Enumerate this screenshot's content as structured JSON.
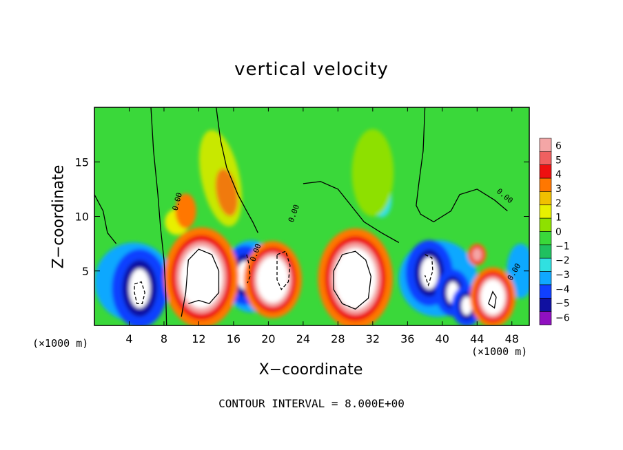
{
  "chart_data": {
    "type": "heatmap",
    "title": "vertical velocity",
    "xlabel": "X−coordinate",
    "ylabel": "Z−coordinate",
    "x_unit": "(×1000 m)",
    "y_unit": "(×1000 m)",
    "x_ticks": [
      4,
      8,
      12,
      16,
      20,
      24,
      28,
      32,
      36,
      40,
      44,
      48
    ],
    "y_ticks": [
      5,
      10,
      15
    ],
    "xlim": [
      0,
      50
    ],
    "ylim": [
      0,
      20
    ],
    "colorbar": {
      "ticks": [
        6,
        5,
        4,
        3,
        2,
        1,
        0,
        -1,
        -2,
        -3,
        -4,
        -5,
        -6
      ],
      "colors": [
        "#f4a6a6",
        "#f06060",
        "#ee1010",
        "#ff7700",
        "#f0c000",
        "#e8f000",
        "#8ee000",
        "#3ad83a",
        "#20c060",
        "#30e0e0",
        "#10a8ff",
        "#1040ff",
        "#1010a0",
        "#9010c0"
      ]
    },
    "contour_interval": "CONTOUR INTERVAL = 8.000E+00",
    "contour_labels": [
      "0.00",
      "0.00",
      "0.00",
      "0.00",
      "0.00"
    ],
    "updrafts": [
      {
        "x": 12.3,
        "z": 4.4,
        "strength": 30
      },
      {
        "x": 20.5,
        "z": 4.2,
        "strength": 22
      },
      {
        "x": 30.0,
        "z": 4.3,
        "strength": 30
      },
      {
        "x": 45.8,
        "z": 2.6,
        "strength": 16
      },
      {
        "x": 44.0,
        "z": 6.5,
        "strength": 3
      }
    ],
    "downdrafts": [
      {
        "x": 5.2,
        "z": 3.4,
        "strength": -20
      },
      {
        "x": 17.3,
        "z": 4.6,
        "strength": -14
      },
      {
        "x": 38.5,
        "z": 4.8,
        "strength": -16
      },
      {
        "x": 41.2,
        "z": 3.0,
        "strength": -10
      },
      {
        "x": 42.8,
        "z": 1.8,
        "strength": -8
      }
    ]
  }
}
